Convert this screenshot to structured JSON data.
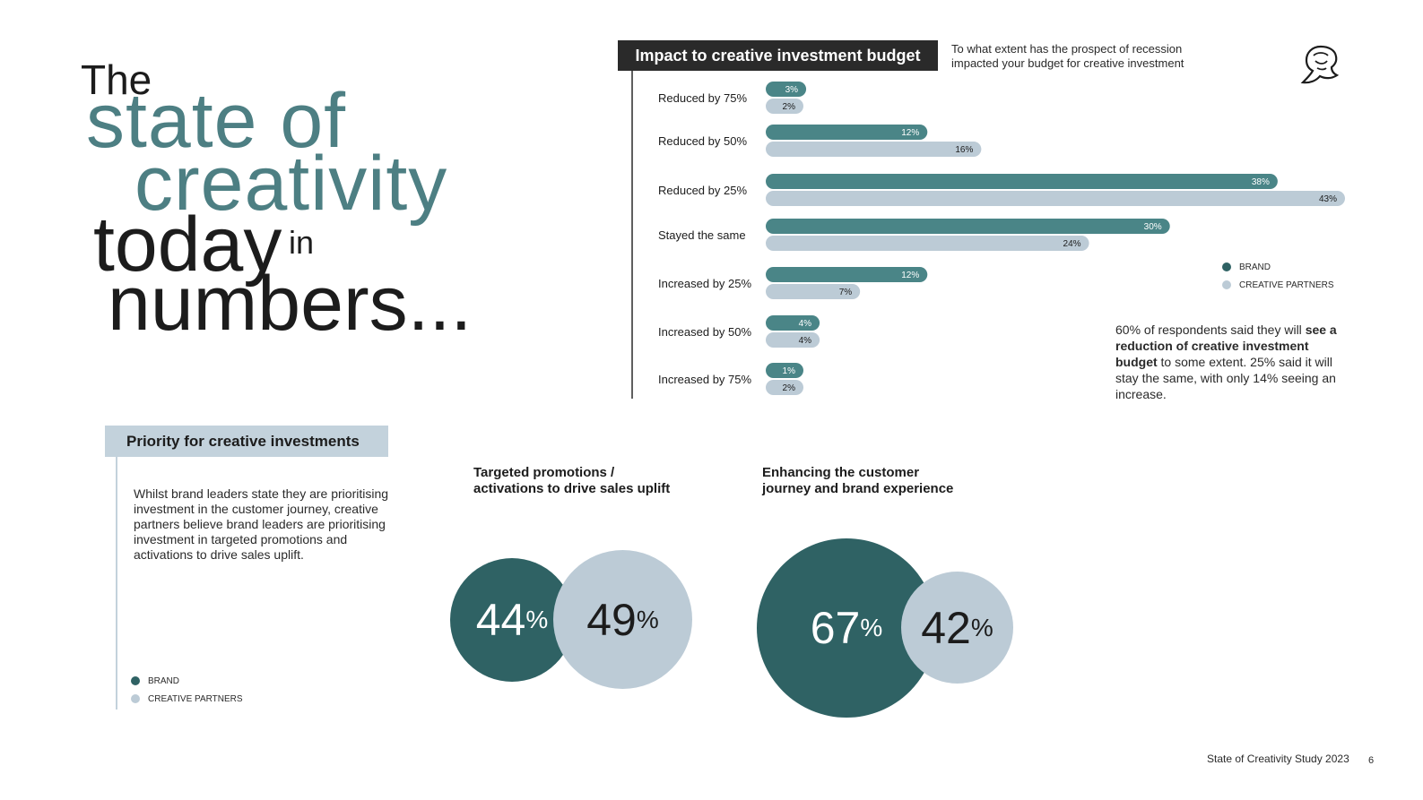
{
  "hero": {
    "line1": "The",
    "line2": "state of",
    "line3": "creativity",
    "line4": "today",
    "line4b": "in",
    "line5": "numbers..."
  },
  "impact": {
    "title": "Impact to creative investment budget",
    "question": "To what extent has the prospect of recession impacted your budget for creative investment"
  },
  "legend": {
    "brand": "BRAND",
    "partners": "CREATIVE PARTNERS"
  },
  "summary": {
    "part1": "60% of respondents said they will ",
    "bold": "see a reduction of creative investment budget",
    "part2": " to some extent. 25% said it will stay the same, with only 14% seeing an increase."
  },
  "priority": {
    "title": "Priority for creative investments",
    "text": "Whilst brand leaders state they are prioritising investment in the customer journey, creative partners believe brand leaders are prioritising investment in targeted promotions and activations to drive sales uplift.",
    "cat1_line1": "Targeted promotions /",
    "cat1_line2": "activations to drive sales uplift",
    "cat2_line1": "Enhancing the customer",
    "cat2_line2": "journey and brand experience",
    "b1": "44",
    "b2": "49",
    "b3": "67",
    "b4": "42",
    "pct": "%"
  },
  "footer": {
    "study": "State of Creativity Study 2023",
    "page": "6"
  },
  "icons": {
    "logo": "lion-icon"
  },
  "colors": {
    "brand": "#4a8587",
    "partners": "#bccbd6",
    "dark": "#2f6264"
  },
  "chart_data": [
    {
      "type": "bar",
      "orientation": "horizontal",
      "title": "Impact to creative investment budget",
      "categories": [
        "Reduced by 75%",
        "Reduced by 50%",
        "Reduced by 25%",
        "Stayed the same",
        "Increased by 25%",
        "Increased by 50%",
        "Increased by 75%"
      ],
      "series": [
        {
          "name": "BRAND",
          "values": [
            3,
            12,
            38,
            30,
            12,
            4,
            1
          ],
          "labels": [
            "3%",
            "12%",
            "38%",
            "30%",
            "12%",
            "4%",
            "1%"
          ]
        },
        {
          "name": "CREATIVE PARTNERS",
          "values": [
            2,
            16,
            43,
            24,
            7,
            4,
            2
          ],
          "labels": [
            "2%",
            "16%",
            "43%",
            "24%",
            "7%",
            "4%",
            "2%"
          ]
        }
      ],
      "xlim": [
        0,
        43
      ],
      "legend": "right"
    },
    {
      "type": "bubble",
      "title": "Priority for creative investments",
      "categories": [
        "Targeted promotions / activations to drive sales uplift",
        "Enhancing the customer journey and brand experience"
      ],
      "series": [
        {
          "name": "BRAND",
          "values": [
            44,
            67
          ]
        },
        {
          "name": "CREATIVE PARTNERS",
          "values": [
            49,
            42
          ]
        }
      ]
    }
  ]
}
